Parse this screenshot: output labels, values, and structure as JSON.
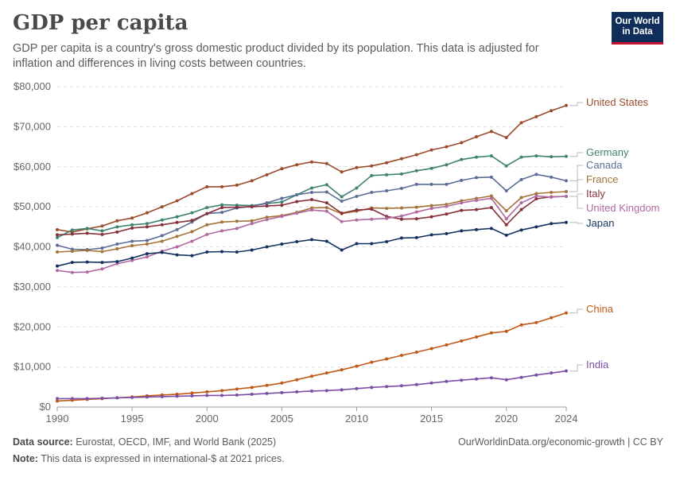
{
  "header": {
    "title": "GDP per capita",
    "subtitle": "GDP per capita is a country's gross domestic product divided by its population. This data is adjusted for inflation and differences in living costs between countries.",
    "logo_line1": "Our World",
    "logo_line2": "in Data"
  },
  "footer": {
    "source_label": "Data source:",
    "source_text": "Eurostat, OECD, IMF, and World Bank (2025)",
    "note_label": "Note:",
    "note_text": "This data is expressed in international-$ at 2021 prices.",
    "credit": "OurWorldinData.org/economic-growth | CC BY"
  },
  "colors": {
    "grid": "#dddddd",
    "axis": "#999999",
    "tick_text": "#666666",
    "logo_bg": "#0f2e5a",
    "logo_accent": "#c8102e"
  },
  "chart_data": {
    "type": "line",
    "xlim": [
      1990,
      2024
    ],
    "ylim": [
      0,
      80000
    ],
    "x_ticks": [
      1990,
      1995,
      2000,
      2005,
      2010,
      2015,
      2020,
      2024
    ],
    "y_ticks": [
      0,
      10000,
      20000,
      30000,
      40000,
      50000,
      60000,
      70000,
      80000
    ],
    "y_tick_labels": [
      "$0",
      "$10,000",
      "$20,000",
      "$30,000",
      "$40,000",
      "$50,000",
      "$60,000",
      "$70,000",
      "$80,000"
    ],
    "grid": true,
    "legend": "right-end-labels",
    "x": [
      1990,
      1991,
      1992,
      1993,
      1994,
      1995,
      1996,
      1997,
      1998,
      1999,
      2000,
      2001,
      2002,
      2003,
      2004,
      2005,
      2006,
      2007,
      2008,
      2009,
      2010,
      2011,
      2012,
      2013,
      2014,
      2015,
      2016,
      2017,
      2018,
      2019,
      2020,
      2021,
      2022,
      2023,
      2024
    ],
    "series": [
      {
        "name": "United States",
        "color": "#9a4c2c",
        "values": [
          44300,
          43700,
          44500,
          45200,
          46500,
          47200,
          48500,
          50000,
          51500,
          53300,
          55000,
          55000,
          55400,
          56500,
          58000,
          59500,
          60500,
          61200,
          60800,
          58700,
          59800,
          60200,
          61000,
          62000,
          63000,
          64200,
          65000,
          66000,
          67500,
          68800,
          67300,
          71000,
          72500,
          74000,
          75300
        ]
      },
      {
        "name": "Germany",
        "color": "#3f8273",
        "values": [
          42300,
          44200,
          44600,
          44000,
          45000,
          45500,
          45800,
          46700,
          47500,
          48500,
          49800,
          50500,
          50400,
          50300,
          50800,
          51200,
          53000,
          54700,
          55500,
          52500,
          54700,
          57800,
          58000,
          58200,
          59000,
          59600,
          60500,
          61800,
          62400,
          62700,
          60200,
          62400,
          62700,
          62500,
          62600
        ]
      },
      {
        "name": "Canada",
        "color": "#5b6d96",
        "values": [
          40400,
          39400,
          39300,
          39700,
          40700,
          41400,
          41600,
          42800,
          44300,
          46200,
          48300,
          48600,
          49700,
          50100,
          51000,
          52100,
          53000,
          53600,
          53700,
          51400,
          52600,
          53600,
          54000,
          54600,
          55600,
          55600,
          55600,
          56600,
          57300,
          57400,
          54000,
          56800,
          58100,
          57400,
          56500
        ]
      },
      {
        "name": "France",
        "color": "#a5733a",
        "values": [
          38700,
          38900,
          39100,
          38800,
          39500,
          40300,
          40700,
          41400,
          42600,
          43800,
          45500,
          46200,
          46400,
          46500,
          47400,
          47800,
          48600,
          49700,
          49800,
          48300,
          48900,
          49700,
          49600,
          49700,
          49900,
          50300,
          50600,
          51500,
          52100,
          52700,
          49000,
          52300,
          53300,
          53600,
          53800
        ]
      },
      {
        "name": "Italy",
        "color": "#883039",
        "values": [
          43000,
          43200,
          43400,
          43100,
          43700,
          44700,
          45000,
          45500,
          46100,
          46600,
          48300,
          49800,
          49900,
          50000,
          50200,
          50400,
          51300,
          51800,
          51000,
          48400,
          49200,
          49400,
          47600,
          46900,
          47000,
          47500,
          48200,
          49100,
          49300,
          49800,
          45500,
          49300,
          52000,
          52500,
          52600
        ]
      },
      {
        "name": "United Kingdom",
        "color": "#b16aa1",
        "values": [
          34100,
          33600,
          33700,
          34500,
          35800,
          36600,
          37500,
          38900,
          40000,
          41400,
          43100,
          44000,
          44600,
          45800,
          46800,
          47600,
          48400,
          49200,
          48900,
          46300,
          46700,
          46900,
          47100,
          47700,
          48700,
          49600,
          50100,
          51000,
          51600,
          52100,
          47000,
          51000,
          52700,
          52400,
          52600
        ]
      },
      {
        "name": "Japan",
        "color": "#15325f",
        "values": [
          35200,
          36100,
          36200,
          36100,
          36300,
          37200,
          38300,
          38600,
          38000,
          37800,
          38700,
          38800,
          38700,
          39200,
          40000,
          40700,
          41300,
          41800,
          41400,
          39200,
          40800,
          40800,
          41300,
          42200,
          42300,
          43000,
          43300,
          44000,
          44300,
          44600,
          42900,
          44200,
          45000,
          45800,
          46100
        ]
      },
      {
        "name": "China",
        "color": "#c05917",
        "values": [
          1500,
          1700,
          1900,
          2100,
          2300,
          2500,
          2800,
          3000,
          3200,
          3500,
          3800,
          4100,
          4500,
          4900,
          5400,
          6000,
          6800,
          7700,
          8500,
          9300,
          10200,
          11200,
          12000,
          12900,
          13700,
          14600,
          15500,
          16500,
          17500,
          18500,
          18900,
          20500,
          21100,
          22300,
          23500
        ]
      },
      {
        "name": "India",
        "color": "#7b4fa3",
        "values": [
          2100,
          2100,
          2100,
          2200,
          2300,
          2400,
          2500,
          2600,
          2700,
          2800,
          2900,
          2900,
          3000,
          3200,
          3400,
          3600,
          3800,
          4000,
          4100,
          4300,
          4600,
          4900,
          5100,
          5300,
          5600,
          6000,
          6400,
          6700,
          7000,
          7300,
          6800,
          7400,
          8000,
          8500,
          9000
        ]
      }
    ]
  }
}
